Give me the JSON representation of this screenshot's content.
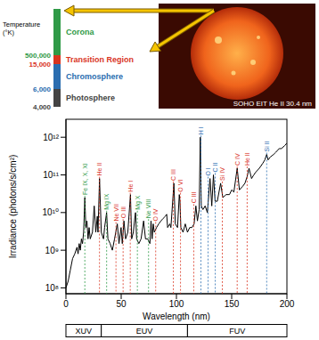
{
  "chart_data": {
    "type": "line",
    "x_label": "Wavelength (nm)",
    "y_label": "Irradiance (photons/s/cm²)",
    "log": "y",
    "color": "#000000",
    "x": [
      0,
      2,
      4,
      6,
      8,
      10,
      11,
      12,
      13,
      14,
      15,
      16,
      17.1,
      18,
      19,
      20,
      21,
      22,
      24,
      25.6,
      27,
      28.4,
      29,
      30.4,
      32,
      34,
      35,
      36.8,
      38,
      40,
      42,
      44,
      46.5,
      48,
      49.9,
      51,
      52.5,
      54,
      56,
      58.4,
      59.5,
      61,
      62.5,
      63,
      64,
      66,
      68,
      70.3,
      72,
      74,
      76,
      77,
      78,
      79,
      80,
      82,
      84,
      86,
      88,
      90,
      91.2,
      92,
      94,
      95,
      97.7,
      99,
      101,
      102.6,
      103.2,
      104,
      106,
      108,
      110,
      112,
      114,
      116,
      117.6,
      119,
      120.6,
      121.6,
      122.5,
      124,
      126,
      128,
      130.4,
      132,
      133.5,
      135,
      137,
      140,
      142,
      145,
      148,
      150,
      152,
      155,
      157,
      160,
      162,
      164,
      165.7,
      168,
      170,
      172,
      175,
      178,
      180,
      181.7,
      183,
      185,
      188,
      190,
      193,
      195,
      198,
      200
    ],
    "values": [
      100000000.0,
      150000000.0,
      300000000.0,
      600000000.0,
      800000000.0,
      1200000000.0,
      800000000.0,
      1500000000.0,
      1000000000.0,
      2000000000.0,
      1500000000.0,
      3000000000.0,
      25000000000.0,
      4000000000.0,
      6000000000.0,
      2000000000.0,
      4000000000.0,
      2000000000.0,
      3000000000.0,
      15000000000.0,
      3000000000.0,
      8000000000.0,
      3000000000.0,
      80000000000.0,
      3000000000.0,
      2000000000.0,
      4000000000.0,
      10000000000.0,
      2000000000.0,
      1500000000.0,
      1000000000.0,
      2000000000.0,
      5000000000.0,
      1500000000.0,
      4000000000.0,
      1500000000.0,
      6000000000.0,
      2000000000.0,
      3000000000.0,
      30000000000.0,
      2000000000.0,
      3000000000.0,
      8000000000.0,
      10000000000.0,
      2000000000.0,
      1500000000.0,
      2000000000.0,
      6000000000.0,
      2000000000.0,
      2000000000.0,
      1500000000.0,
      6000000000.0,
      2000000000.0,
      5000000000.0,
      3000000000.0,
      4000000000.0,
      5000000000.0,
      6000000000.0,
      7000000000.0,
      8000000000.0,
      9000000000.0,
      4000000000.0,
      5000000000.0,
      4000000000.0,
      60000000000.0,
      5000000000.0,
      4000000000.0,
      30000000000.0,
      20000000000.0,
      4000000000.0,
      3000000000.0,
      5000000000.0,
      3000000000.0,
      4000000000.0,
      4000000000.0,
      5000000000.0,
      15000000000.0,
      6000000000.0,
      12000000000.0,
      1000000000000.0,
      15000000000.0,
      12000000000.0,
      15000000000.0,
      10000000000.0,
      80000000000.0,
      15000000000.0,
      100000000000.0,
      20000000000.0,
      20000000000.0,
      60000000000.0,
      25000000000.0,
      30000000000.0,
      30000000000.0,
      40000000000.0,
      35000000000.0,
      150000000000.0,
      40000000000.0,
      50000000000.0,
      60000000000.0,
      90000000000.0,
      150000000000.0,
      80000000000.0,
      100000000000.0,
      120000000000.0,
      150000000000.0,
      200000000000.0,
      250000000000.0,
      350000000000.0,
      250000000000.0,
      300000000000.0,
      350000000000.0,
      400000000000.0,
      500000000000.0,
      500000000000.0,
      600000000000.0,
      700000000000.0
    ],
    "xlim": [
      0,
      200
    ],
    "xticks": [
      0,
      50,
      100,
      150,
      200
    ],
    "ylim": [
      70000000.0,
      3000000000000.0
    ],
    "yticks": [
      {
        "value": 100000000.0,
        "label": "10⁸"
      },
      {
        "value": 1000000000.0,
        "label": "10⁹"
      },
      {
        "value": 10000000000.0,
        "label": "10¹⁰"
      },
      {
        "value": 100000000000.0,
        "label": "10¹¹"
      },
      {
        "value": 1000000000000.0,
        "label": "10¹²"
      }
    ],
    "annotations": [
      {
        "text": "Fe IX, X, XI",
        "x": 17.1,
        "color": "#2f9a47"
      },
      {
        "text": "He II",
        "x": 30.4,
        "color": "#d9341f"
      },
      {
        "text": "Mg IX",
        "x": 36.8,
        "color": "#2f9a47"
      },
      {
        "text": "Ne VII",
        "x": 46.5,
        "color": "#d9341f"
      },
      {
        "text": "O III",
        "x": 52.5,
        "color": "#d9341f"
      },
      {
        "text": "He I",
        "x": 58.4,
        "color": "#d9341f"
      },
      {
        "text": "Mg X",
        "x": 62.5,
        "color": "#2f9a47"
      },
      {
        "text": "Ne VIII",
        "x": 77.0,
        "color": "#2f9a47"
      },
      {
        "text": "O IV",
        "x": 79.0,
        "color": "#d9341f"
      },
      {
        "text": "C III",
        "x": 97.7,
        "color": "#d9341f"
      },
      {
        "text": "O VI",
        "x": 103.2,
        "color": "#d9341f"
      },
      {
        "text": "C III",
        "x": 117.6,
        "color": "#d9341f"
      },
      {
        "text": "H I",
        "x": 121.6,
        "color": "#2a6db0"
      },
      {
        "text": "O I",
        "x": 130.4,
        "color": "#2a6db0"
      },
      {
        "text": "C II",
        "x": 133.5,
        "color": "#2a6db0"
      },
      {
        "text": "Si IV",
        "x": 140.0,
        "color": "#d9341f"
      },
      {
        "text": "C IV",
        "x": 155.0,
        "color": "#d9341f"
      },
      {
        "text": "He II",
        "x": 164.0,
        "color": "#d9341f"
      },
      {
        "text": "Si II",
        "x": 181.7,
        "color": "#2a6db0"
      }
    ],
    "regions": [
      {
        "label": "XUV",
        "from": 0,
        "to": 32
      },
      {
        "label": "EUV",
        "from": 32,
        "to": 110
      },
      {
        "label": "FUV",
        "from": 110,
        "to": 200
      }
    ]
  },
  "temperature_scale": {
    "title": "Temperature (°K)",
    "layers": [
      {
        "name": "Corona",
        "color": "#2f9a47",
        "lower": "500,000"
      },
      {
        "name": "Transition Region",
        "color": "#d9341f",
        "lower": "15,000"
      },
      {
        "name": "Chromosphere",
        "color": "#2a6db0",
        "lower": "6,000"
      },
      {
        "name": "Photosphere",
        "color": "#444444",
        "lower": "4,000"
      }
    ]
  },
  "image": {
    "caption": "SOHO EIT He II 30.4 nm"
  }
}
